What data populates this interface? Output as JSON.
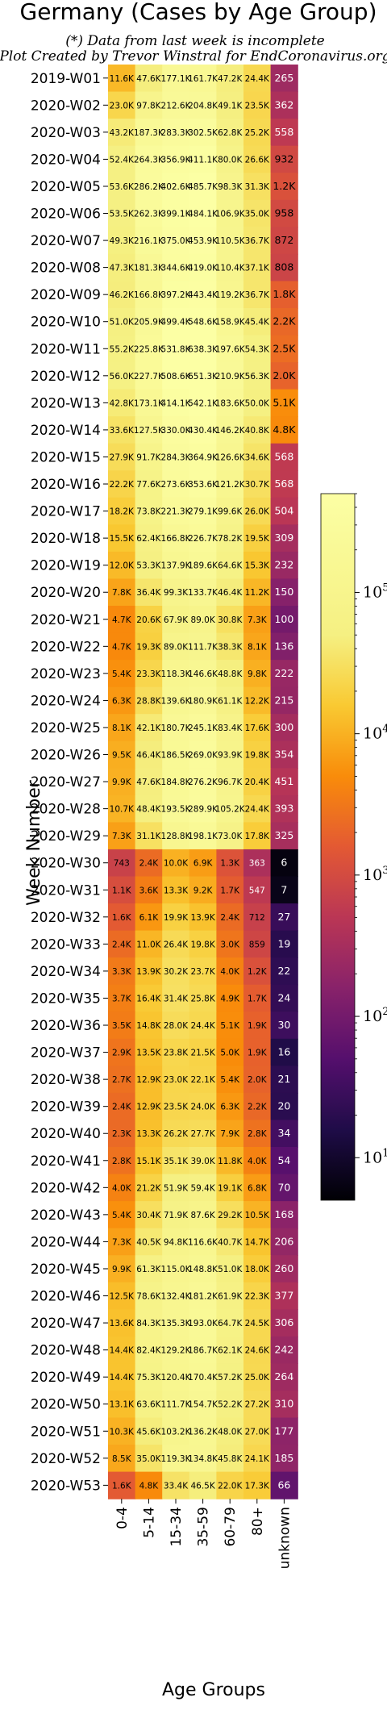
{
  "title": "Germany (Cases by Age Group)",
  "subtitle_lines": [
    "(*) Data from last week is incomplete",
    "Plot Created by Trevor Winstral for EndCoronavirus.org"
  ],
  "chart_data": {
    "type": "heatmap",
    "xlabel": "Age Groups",
    "ylabel": "Week Number",
    "colormap": "inferno",
    "color_scale": "log",
    "color_range": [
      5,
      500000
    ],
    "colorbar_ticks": [
      {
        "label": "10^1",
        "value": 10
      },
      {
        "label": "10^2",
        "value": 100
      },
      {
        "label": "10^3",
        "value": 1000
      },
      {
        "label": "10^4",
        "value": 10000
      },
      {
        "label": "10^5",
        "value": 100000
      }
    ],
    "columns": [
      "0-4",
      "5-14",
      "15-34",
      "35-59",
      "60-79",
      "80+",
      "unknown"
    ],
    "rows": [
      "2019-W01",
      "2020-W02",
      "2020-W03",
      "2020-W04",
      "2020-W05",
      "2020-W06",
      "2020-W07",
      "2020-W08",
      "2020-W09",
      "2020-W10",
      "2020-W11",
      "2020-W12",
      "2020-W13",
      "2020-W14",
      "2020-W15",
      "2020-W16",
      "2020-W17",
      "2020-W18",
      "2020-W19",
      "2020-W20",
      "2020-W21",
      "2020-W22",
      "2020-W23",
      "2020-W24",
      "2020-W25",
      "2020-W26",
      "2020-W27",
      "2020-W28",
      "2020-W29",
      "2020-W30",
      "2020-W31",
      "2020-W32",
      "2020-W33",
      "2020-W34",
      "2020-W35",
      "2020-W36",
      "2020-W37",
      "2020-W38",
      "2020-W39",
      "2020-W40",
      "2020-W41",
      "2020-W42",
      "2020-W43",
      "2020-W44",
      "2020-W45",
      "2020-W46",
      "2020-W47",
      "2020-W48",
      "2020-W49",
      "2020-W50",
      "2020-W51",
      "2020-W52",
      "2020-W53"
    ],
    "labels": [
      [
        "11.6K",
        "47.6K",
        "177.1K",
        "161.7K",
        "47.2K",
        "24.4K",
        "265"
      ],
      [
        "23.0K",
        "97.8K",
        "212.6K",
        "204.8K",
        "49.1K",
        "23.5K",
        "362"
      ],
      [
        "43.2K",
        "187.3K",
        "283.3K",
        "302.5K",
        "62.8K",
        "25.2K",
        "558"
      ],
      [
        "52.4K",
        "264.3K",
        "356.9K",
        "411.1K",
        "80.0K",
        "26.6K",
        "932"
      ],
      [
        "53.6K",
        "286.2K",
        "402.6K",
        "485.7K",
        "98.3K",
        "31.3K",
        "1.2K"
      ],
      [
        "53.5K",
        "262.3K",
        "399.1K",
        "484.1K",
        "106.9K",
        "35.0K",
        "958"
      ],
      [
        "49.3K",
        "216.1K",
        "375.0K",
        "453.9K",
        "110.5K",
        "36.7K",
        "872"
      ],
      [
        "47.3K",
        "181.3K",
        "344.6K",
        "419.0K",
        "110.4K",
        "37.1K",
        "808"
      ],
      [
        "46.2K",
        "166.8K",
        "397.2K",
        "443.4K",
        "119.2K",
        "36.7K",
        "1.8K"
      ],
      [
        "51.0K",
        "205.9K",
        "499.4K",
        "548.6K",
        "158.9K",
        "45.4K",
        "2.2K"
      ],
      [
        "55.2K",
        "225.8K",
        "531.8K",
        "638.3K",
        "197.6K",
        "54.3K",
        "2.5K"
      ],
      [
        "56.0K",
        "227.7K",
        "508.6K",
        "651.3K",
        "210.9K",
        "56.3K",
        "2.0K"
      ],
      [
        "42.8K",
        "173.1K",
        "414.1K",
        "542.1K",
        "183.6K",
        "50.0K",
        "5.1K"
      ],
      [
        "33.6K",
        "127.5K",
        "330.0K",
        "430.4K",
        "146.2K",
        "40.8K",
        "4.8K"
      ],
      [
        "27.9K",
        "91.7K",
        "284.3K",
        "364.9K",
        "126.6K",
        "34.6K",
        "568"
      ],
      [
        "22.2K",
        "77.6K",
        "273.6K",
        "353.6K",
        "121.2K",
        "30.7K",
        "568"
      ],
      [
        "18.2K",
        "73.8K",
        "221.3K",
        "279.1K",
        "99.6K",
        "26.0K",
        "504"
      ],
      [
        "15.5K",
        "62.4K",
        "166.8K",
        "226.7K",
        "78.2K",
        "19.5K",
        "309"
      ],
      [
        "12.0K",
        "53.3K",
        "137.9K",
        "189.6K",
        "64.6K",
        "15.3K",
        "232"
      ],
      [
        "7.8K",
        "36.4K",
        "99.3K",
        "133.7K",
        "46.4K",
        "11.2K",
        "150"
      ],
      [
        "4.7K",
        "20.6K",
        "67.9K",
        "89.0K",
        "30.8K",
        "7.3K",
        "100"
      ],
      [
        "4.7K",
        "19.3K",
        "89.0K",
        "111.7K",
        "38.3K",
        "8.1K",
        "136"
      ],
      [
        "5.4K",
        "23.3K",
        "118.3K",
        "146.6K",
        "48.8K",
        "9.8K",
        "222"
      ],
      [
        "6.3K",
        "28.8K",
        "139.6K",
        "180.9K",
        "61.1K",
        "12.2K",
        "215"
      ],
      [
        "8.1K",
        "42.1K",
        "180.7K",
        "245.1K",
        "83.4K",
        "17.6K",
        "300"
      ],
      [
        "9.5K",
        "46.4K",
        "186.5K",
        "269.0K",
        "93.9K",
        "19.8K",
        "354"
      ],
      [
        "9.9K",
        "47.6K",
        "184.8K",
        "276.2K",
        "96.7K",
        "20.4K",
        "451"
      ],
      [
        "10.7K",
        "48.4K",
        "193.5K",
        "289.9K",
        "105.2K",
        "24.4K",
        "393"
      ],
      [
        "7.3K",
        "31.1K",
        "128.8K",
        "198.1K",
        "73.0K",
        "17.8K",
        "325"
      ],
      [
        "743",
        "2.4K",
        "10.0K",
        "6.9K",
        "1.3K",
        "363",
        "6"
      ],
      [
        "1.1K",
        "3.6K",
        "13.3K",
        "9.2K",
        "1.7K",
        "547",
        "7"
      ],
      [
        "1.6K",
        "6.1K",
        "19.9K",
        "13.9K",
        "2.4K",
        "712",
        "27"
      ],
      [
        "2.4K",
        "11.0K",
        "26.4K",
        "19.8K",
        "3.0K",
        "859",
        "19"
      ],
      [
        "3.3K",
        "13.9K",
        "30.2K",
        "23.7K",
        "4.0K",
        "1.2K",
        "22"
      ],
      [
        "3.7K",
        "16.4K",
        "31.4K",
        "25.8K",
        "4.9K",
        "1.7K",
        "24"
      ],
      [
        "3.5K",
        "14.8K",
        "28.0K",
        "24.4K",
        "5.1K",
        "1.9K",
        "30"
      ],
      [
        "2.9K",
        "13.5K",
        "23.8K",
        "21.5K",
        "5.0K",
        "1.9K",
        "16"
      ],
      [
        "2.7K",
        "12.9K",
        "23.0K",
        "22.1K",
        "5.4K",
        "2.0K",
        "21"
      ],
      [
        "2.4K",
        "12.9K",
        "23.5K",
        "24.0K",
        "6.3K",
        "2.2K",
        "20"
      ],
      [
        "2.3K",
        "13.3K",
        "26.2K",
        "27.7K",
        "7.9K",
        "2.8K",
        "34"
      ],
      [
        "2.8K",
        "15.1K",
        "35.1K",
        "39.0K",
        "11.8K",
        "4.0K",
        "54"
      ],
      [
        "4.0K",
        "21.2K",
        "51.9K",
        "59.4K",
        "19.1K",
        "6.8K",
        "70"
      ],
      [
        "5.4K",
        "30.4K",
        "71.9K",
        "87.6K",
        "29.2K",
        "10.5K",
        "168"
      ],
      [
        "7.3K",
        "40.5K",
        "94.8K",
        "116.6K",
        "40.7K",
        "14.7K",
        "206"
      ],
      [
        "9.9K",
        "61.3K",
        "115.0K",
        "148.8K",
        "51.0K",
        "18.0K",
        "260"
      ],
      [
        "12.5K",
        "78.6K",
        "132.4K",
        "181.2K",
        "61.9K",
        "22.3K",
        "377"
      ],
      [
        "13.6K",
        "84.3K",
        "135.3K",
        "193.0K",
        "64.7K",
        "24.5K",
        "306"
      ],
      [
        "14.4K",
        "82.4K",
        "129.2K",
        "186.7K",
        "62.1K",
        "24.6K",
        "242"
      ],
      [
        "14.4K",
        "75.3K",
        "120.4K",
        "170.4K",
        "57.2K",
        "25.0K",
        "264"
      ],
      [
        "13.1K",
        "63.6K",
        "111.7K",
        "154.7K",
        "52.2K",
        "27.2K",
        "310"
      ],
      [
        "10.3K",
        "45.6K",
        "103.2K",
        "136.2K",
        "48.0K",
        "27.0K",
        "177"
      ],
      [
        "8.5K",
        "35.0K",
        "119.3K",
        "134.8K",
        "45.8K",
        "24.1K",
        "185"
      ],
      [
        "1.6K",
        "4.8K",
        "33.4K",
        "46.5K",
        "22.0K",
        "17.3K",
        "66"
      ]
    ]
  }
}
